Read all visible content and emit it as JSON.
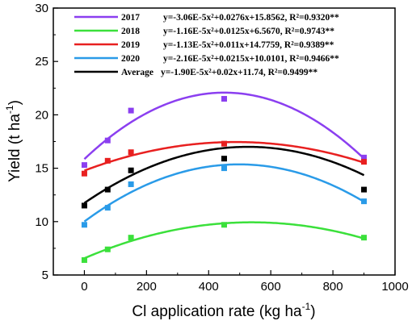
{
  "chart_data": {
    "type": "scatter",
    "xlabel": "Cl application rate (kg ha",
    "xlabel_sup": "-1",
    "xlabel_end": ")",
    "ylabel": "Yield (t ha",
    "ylabel_sup": "-1",
    "ylabel_end": ")",
    "xlim": [
      -100,
      1000
    ],
    "ylim": [
      5,
      30
    ],
    "xticks": [
      0,
      200,
      400,
      600,
      800,
      1000
    ],
    "yticks": [
      5,
      10,
      15,
      20,
      25,
      30
    ],
    "x": [
      0,
      75,
      150,
      450,
      900
    ],
    "grid": false,
    "legend_position": "top",
    "series": [
      {
        "name": "2017",
        "color": "#8b3ff0",
        "values": [
          15.3,
          17.6,
          20.4,
          21.5,
          16.0
        ],
        "fit": {
          "a": -3.06e-05,
          "b": 0.0276,
          "c": 15.8562
        },
        "equation": "y=-3.06E-5x²+0.0276x+15.8562, R²=0.9320**"
      },
      {
        "name": "2018",
        "color": "#3be03b",
        "values": [
          6.4,
          7.4,
          8.5,
          9.7,
          8.5
        ],
        "fit": {
          "a": -1.16e-05,
          "b": 0.0125,
          "c": 6.567
        },
        "equation": "y=-1.16E-5x²+0.0125x+6.5670, R²=0.9743**"
      },
      {
        "name": "2019",
        "color": "#e82020",
        "values": [
          14.5,
          15.7,
          16.5,
          17.3,
          15.6
        ],
        "fit": {
          "a": -1.13e-05,
          "b": 0.011,
          "c": 14.7759
        },
        "equation": "y=-1.13E-5x²+0.011x+14.7759, R²=0.9389**"
      },
      {
        "name": "2020",
        "color": "#2a9be8",
        "values": [
          9.7,
          11.3,
          13.5,
          15.0,
          11.9
        ],
        "fit": {
          "a": -2.16e-05,
          "b": 0.0215,
          "c": 10.0101
        },
        "equation": "y=-2.16E-5x²+0.0215x+10.0101, R²=0.9466**"
      },
      {
        "name": "Average",
        "color": "#000000",
        "values": [
          11.5,
          13.0,
          14.8,
          15.9,
          13.0
        ],
        "fit": {
          "a": -1.9e-05,
          "b": 0.02,
          "c": 11.74
        },
        "equation": "y=-1.90E-5x²+0.02x+11.74, R²=0.9499**"
      }
    ]
  }
}
